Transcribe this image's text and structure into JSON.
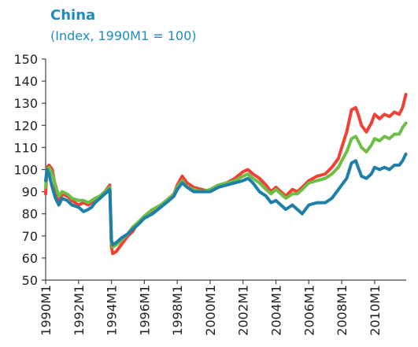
{
  "title": "China",
  "subtitle": "(Index, 1990M1 = 100)",
  "colors": {
    "title": "#1f8dbb",
    "axis": "#444444",
    "text": "#222222"
  },
  "chart_data": {
    "type": "line",
    "title": "China",
    "subtitle": "(Index, 1990M1 = 100)",
    "xlabel": "",
    "ylabel": "",
    "ylim": [
      50,
      150
    ],
    "xlim": [
      1990.0,
      2011.92
    ],
    "grid": false,
    "legend": "none",
    "y_ticks": [
      50,
      60,
      70,
      80,
      90,
      100,
      110,
      120,
      130,
      140,
      150
    ],
    "x_tick_labels": [
      "1990M1",
      "1992M1",
      "1994M1",
      "1996M1",
      "1998M1",
      "2000M1",
      "2002M1",
      "2004M1",
      "2006M1",
      "2008M1",
      "2010M1"
    ],
    "x_tick_years": [
      1990,
      1992,
      1994,
      1996,
      1998,
      2000,
      2002,
      2004,
      2006,
      2008,
      2010
    ],
    "series": [
      {
        "color": "#ef4136",
        "x": [
          1990.0,
          1990.08,
          1990.2,
          1990.4,
          1990.6,
          1990.8,
          1991.0,
          1991.3,
          1991.6,
          1992.0,
          1992.3,
          1992.6,
          1992.8,
          1993.0,
          1993.3,
          1993.6,
          1993.9,
          1994.0,
          1994.08,
          1994.3,
          1994.6,
          1995.0,
          1995.3,
          1995.6,
          1996.0,
          1996.5,
          1997.0,
          1997.5,
          1997.8,
          1998.0,
          1998.3,
          1998.6,
          1999.0,
          1999.5,
          2000.0,
          2000.5,
          2001.0,
          2001.5,
          2002.0,
          2002.3,
          2002.6,
          2003.0,
          2003.4,
          2003.7,
          2004.0,
          2004.3,
          2004.6,
          2005.0,
          2005.3,
          2005.6,
          2006.0,
          2006.5,
          2007.0,
          2007.4,
          2007.8,
          2008.0,
          2008.3,
          2008.6,
          2008.85,
          2009.0,
          2009.2,
          2009.5,
          2009.8,
          2010.0,
          2010.3,
          2010.6,
          2010.9,
          2011.2,
          2011.5,
          2011.7,
          2011.9
        ],
        "y": [
          89,
          101,
          102,
          100,
          92,
          85,
          89,
          88,
          86,
          84,
          85,
          84,
          85,
          86,
          88,
          90,
          93,
          65,
          62,
          63,
          66,
          70,
          72,
          76,
          78,
          81,
          84,
          87,
          89,
          93,
          97,
          94,
          92,
          91,
          90,
          92,
          94,
          96,
          99,
          100,
          98,
          96,
          93,
          90,
          92,
          90,
          88,
          91,
          90,
          92,
          95,
          97,
          98,
          101,
          105,
          110,
          117,
          127,
          128,
          125,
          120,
          117,
          121,
          125,
          123,
          125,
          124,
          126,
          125,
          128,
          134
        ]
      },
      {
        "color": "#6dbe45",
        "x": [
          1990.0,
          1990.08,
          1990.2,
          1990.4,
          1990.6,
          1990.8,
          1991.0,
          1991.3,
          1991.6,
          1992.0,
          1992.3,
          1992.6,
          1992.8,
          1993.0,
          1993.3,
          1993.6,
          1993.9,
          1994.0,
          1994.08,
          1994.3,
          1994.6,
          1995.0,
          1995.3,
          1995.6,
          1996.0,
          1996.5,
          1997.0,
          1997.5,
          1997.8,
          1998.0,
          1998.3,
          1998.6,
          1999.0,
          1999.5,
          2000.0,
          2000.5,
          2001.0,
          2001.5,
          2002.0,
          2002.3,
          2002.6,
          2003.0,
          2003.4,
          2003.7,
          2004.0,
          2004.3,
          2004.6,
          2005.0,
          2005.3,
          2005.6,
          2006.0,
          2006.5,
          2007.0,
          2007.4,
          2007.8,
          2008.0,
          2008.3,
          2008.6,
          2008.85,
          2009.0,
          2009.2,
          2009.5,
          2009.8,
          2010.0,
          2010.3,
          2010.6,
          2010.9,
          2011.2,
          2011.5,
          2011.7,
          2011.9
        ],
        "y": [
          92,
          100,
          101,
          98,
          93,
          88,
          90,
          89,
          87,
          86,
          86,
          85,
          86,
          87,
          88,
          90,
          92,
          67,
          65,
          66,
          68,
          71,
          74,
          76,
          79,
          82,
          84,
          87,
          89,
          92,
          95,
          92,
          91,
          90,
          91,
          93,
          94,
          95,
          97,
          98,
          96,
          94,
          91,
          89,
          91,
          89,
          87,
          89,
          89,
          91,
          94,
          95,
          96,
          98,
          101,
          104,
          108,
          114,
          115,
          113,
          110,
          108,
          111,
          114,
          113,
          115,
          114,
          116,
          116,
          119,
          121
        ]
      },
      {
        "color": "#1e7fa8",
        "x": [
          1990.0,
          1990.08,
          1990.2,
          1990.4,
          1990.6,
          1990.8,
          1991.0,
          1991.3,
          1991.6,
          1992.0,
          1992.3,
          1992.6,
          1992.8,
          1993.0,
          1993.3,
          1993.6,
          1993.9,
          1994.0,
          1994.08,
          1994.3,
          1994.6,
          1995.0,
          1995.3,
          1995.6,
          1996.0,
          1996.5,
          1997.0,
          1997.5,
          1997.8,
          1998.0,
          1998.3,
          1998.6,
          1999.0,
          1999.5,
          2000.0,
          2000.5,
          2001.0,
          2001.5,
          2002.0,
          2002.3,
          2002.6,
          2003.0,
          2003.4,
          2003.7,
          2004.0,
          2004.3,
          2004.6,
          2005.0,
          2005.3,
          2005.6,
          2006.0,
          2006.5,
          2007.0,
          2007.4,
          2007.8,
          2008.0,
          2008.3,
          2008.6,
          2008.85,
          2009.0,
          2009.2,
          2009.5,
          2009.8,
          2010.0,
          2010.3,
          2010.6,
          2010.9,
          2011.2,
          2011.5,
          2011.7,
          2011.9
        ],
        "y": [
          95,
          100,
          98,
          92,
          87,
          84,
          87,
          86,
          84,
          83,
          81,
          82,
          83,
          85,
          87,
          89,
          91,
          68,
          66,
          67,
          69,
          71,
          73,
          75,
          78,
          80,
          83,
          86,
          88,
          91,
          94,
          92,
          90,
          90,
          90,
          92,
          93,
          94,
          95,
          96,
          94,
          90,
          88,
          85,
          86,
          84,
          82,
          84,
          82,
          80,
          84,
          85,
          85,
          87,
          91,
          93,
          96,
          103,
          104,
          101,
          97,
          96,
          98,
          101,
          100,
          101,
          100,
          102,
          102,
          104,
          107
        ]
      }
    ]
  }
}
